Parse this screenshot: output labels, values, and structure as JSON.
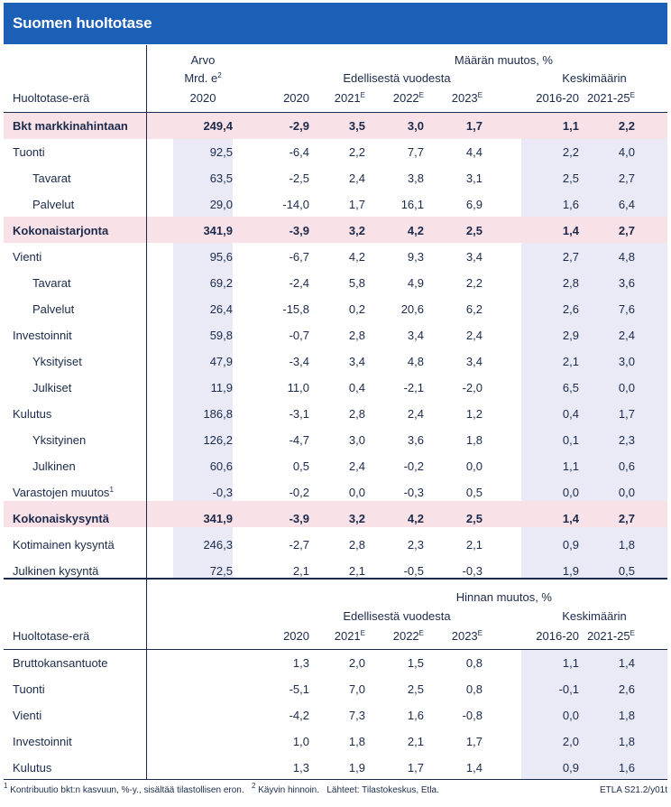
{
  "title": "Suomen huoltotase",
  "section1": {
    "header": {
      "arvo": "Arvo",
      "mrd": "Mrd. e",
      "mrd_sup": "2",
      "arvo_year": "2020",
      "group_title": "Määrän muutos, %",
      "prev_year": "Edellisestä vuodesta",
      "average": "Keskimäärin",
      "row_label": "Huoltotase-erä",
      "years": [
        "2020",
        "2021",
        "2022",
        "2023",
        "2016-20",
        "2021-25"
      ],
      "year_sups": [
        "",
        "E",
        "E",
        "E",
        "",
        "E"
      ]
    },
    "rows": [
      {
        "label": "Bkt markkinahintaan",
        "sup": "",
        "values": [
          "249,4",
          "-2,9",
          "3,5",
          "3,0",
          "1,7",
          "1,1",
          "2,2"
        ],
        "highlight": true
      },
      {
        "label": "Tuonti",
        "sup": "",
        "values": [
          "92,5",
          "-6,4",
          "2,2",
          "7,7",
          "4,4",
          "2,2",
          "4,0"
        ],
        "highlight": false
      },
      {
        "label": "Tavarat",
        "sup": "",
        "values": [
          "63,5",
          "-2,5",
          "2,4",
          "3,8",
          "3,1",
          "2,5",
          "2,7"
        ],
        "highlight": false,
        "indent": true
      },
      {
        "label": "Palvelut",
        "sup": "",
        "values": [
          "29,0",
          "-14,0",
          "1,7",
          "16,1",
          "6,9",
          "1,6",
          "6,4"
        ],
        "highlight": false,
        "indent": true
      },
      {
        "label": "Kokonaistarjonta",
        "sup": "",
        "values": [
          "341,9",
          "-3,9",
          "3,2",
          "4,2",
          "2,5",
          "1,4",
          "2,7"
        ],
        "highlight": true
      },
      {
        "label": "Vienti",
        "sup": "",
        "values": [
          "95,6",
          "-6,7",
          "4,2",
          "9,3",
          "3,4",
          "2,7",
          "4,8"
        ],
        "highlight": false
      },
      {
        "label": "Tavarat",
        "sup": "",
        "values": [
          "69,2",
          "-2,4",
          "5,8",
          "4,9",
          "2,2",
          "2,8",
          "3,6"
        ],
        "highlight": false,
        "indent": true
      },
      {
        "label": "Palvelut",
        "sup": "",
        "values": [
          "26,4",
          "-15,8",
          "0,2",
          "20,6",
          "6,2",
          "2,6",
          "7,6"
        ],
        "highlight": false,
        "indent": true
      },
      {
        "label": "Investoinnit",
        "sup": "",
        "values": [
          "59,8",
          "-0,7",
          "2,8",
          "3,4",
          "2,4",
          "2,9",
          "2,4"
        ],
        "highlight": false
      },
      {
        "label": "Yksityiset",
        "sup": "",
        "values": [
          "47,9",
          "-3,4",
          "3,4",
          "4,8",
          "3,4",
          "2,1",
          "3,0"
        ],
        "highlight": false,
        "indent": true
      },
      {
        "label": "Julkiset",
        "sup": "",
        "values": [
          "11,9",
          "11,0",
          "0,4",
          "-2,1",
          "-2,0",
          "6,5",
          "0,0"
        ],
        "highlight": false,
        "indent": true
      },
      {
        "label": "Kulutus",
        "sup": "",
        "values": [
          "186,8",
          "-3,1",
          "2,8",
          "2,4",
          "1,2",
          "0,4",
          "1,7"
        ],
        "highlight": false
      },
      {
        "label": "Yksityinen",
        "sup": "",
        "values": [
          "126,2",
          "-4,7",
          "3,0",
          "3,6",
          "1,8",
          "0,1",
          "2,3"
        ],
        "highlight": false,
        "indent": true
      },
      {
        "label": "Julkinen",
        "sup": "",
        "values": [
          "60,6",
          "0,5",
          "2,4",
          "-0,2",
          "0,0",
          "1,1",
          "0,6"
        ],
        "highlight": false,
        "indent": true
      },
      {
        "label": "Varastojen muutos",
        "sup": "1",
        "values": [
          "-0,3",
          "-0,2",
          "0,0",
          "-0,3",
          "0,5",
          "0,0",
          "0,0"
        ],
        "highlight": false
      },
      {
        "label": "Kokonaiskysyntä",
        "sup": "",
        "values": [
          "341,9",
          "-3,9",
          "3,2",
          "4,2",
          "2,5",
          "1,4",
          "2,7"
        ],
        "highlight": true
      },
      {
        "label": "Kotimainen kysyntä",
        "sup": "",
        "values": [
          "246,3",
          "-2,7",
          "2,8",
          "2,3",
          "2,1",
          "0,9",
          "1,8"
        ],
        "highlight": false
      },
      {
        "label": "Julkinen kysyntä",
        "sup": "",
        "values": [
          "72,5",
          "2,1",
          "2,1",
          "-0,5",
          "-0,3",
          "1,9",
          "0,5"
        ],
        "highlight": false
      }
    ]
  },
  "section2": {
    "header": {
      "group_title": "Hinnan muutos, %",
      "prev_year": "Edellisestä vuodesta",
      "average": "Keskimäärin",
      "row_label": "Huoltotase-erä",
      "years": [
        "2020",
        "2021",
        "2022",
        "2023",
        "2016-20",
        "2021-25"
      ],
      "year_sups": [
        "",
        "E",
        "E",
        "E",
        "",
        "E"
      ]
    },
    "rows": [
      {
        "label": "Bruttokansantuote",
        "values": [
          "1,3",
          "2,0",
          "1,5",
          "0,8",
          "1,1",
          "1,4"
        ]
      },
      {
        "label": "Tuonti",
        "values": [
          "-5,1",
          "7,0",
          "2,5",
          "0,8",
          "-0,1",
          "2,6"
        ]
      },
      {
        "label": "Vienti",
        "values": [
          "-4,2",
          "7,3",
          "1,6",
          "-0,8",
          "0,0",
          "1,8"
        ]
      },
      {
        "label": "Investoinnit",
        "values": [
          "1,0",
          "1,8",
          "2,1",
          "1,7",
          "2,0",
          "1,8"
        ]
      },
      {
        "label": "Kulutus",
        "values": [
          "1,3",
          "1,9",
          "1,7",
          "1,4",
          "0,9",
          "1,6"
        ]
      }
    ]
  },
  "footer": {
    "note1_mark": "1",
    "note1": "Kontribuutio bkt:n kasvuun, %-y., sisältää tilastollisen eron.",
    "note2_mark": "2",
    "note2": "Käyvin hinnoin.",
    "sources": "Lähteet: Tilastokeskus, Etla.",
    "code": "ETLA S21.2/y01t"
  },
  "colors": {
    "title_bg": "#1c5fb6",
    "highlight_row": "#f9e1e8",
    "shaded_column": "#e9eaf5",
    "text": "#1b2a4a"
  }
}
